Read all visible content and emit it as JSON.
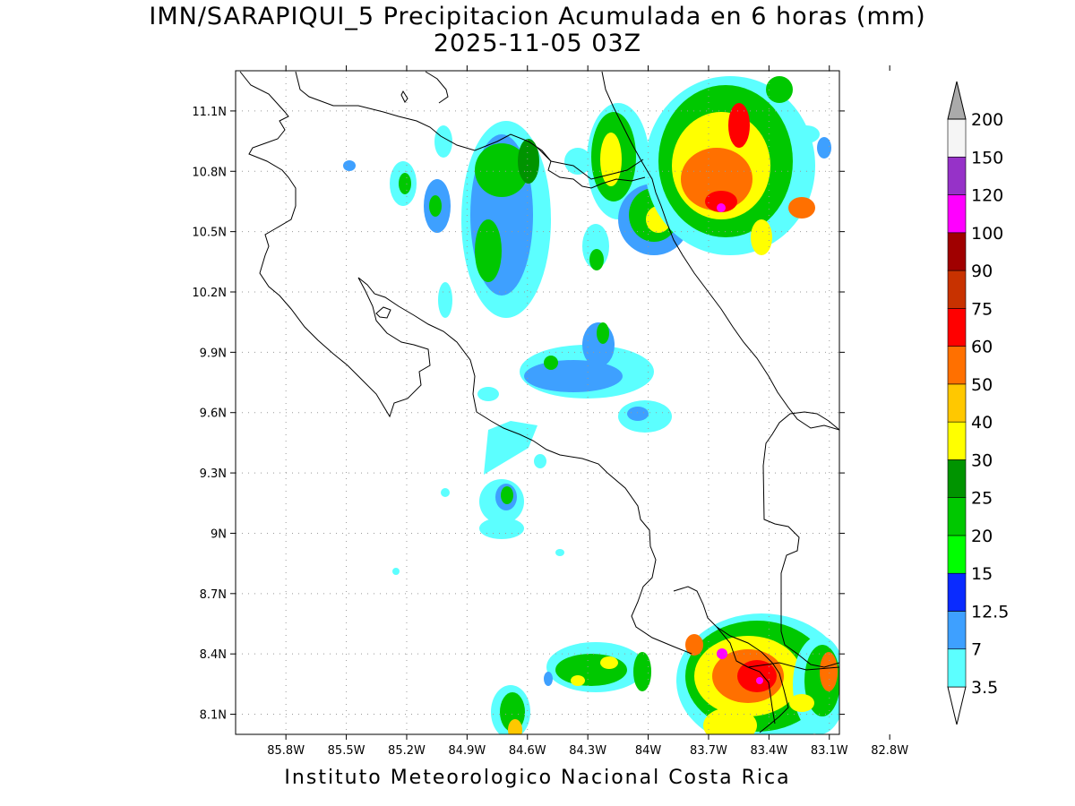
{
  "title_line1": "IMN/SARAPIQUI_5 Precipitacion Acumulada en 6 horas (mm)",
  "title_line2": "2025-11-05 03Z",
  "footer": "Instituto Meteorologico Nacional Costa Rica",
  "map": {
    "lon_range": [
      -86.05,
      -83.05
    ],
    "lat_range": [
      8.0,
      11.3
    ],
    "lon_ticks": [
      "85.8W",
      "85.5W",
      "85.2W",
      "84.9W",
      "84.6W",
      "84.3W",
      "84W",
      "83.7W",
      "83.4W",
      "83.1W",
      "82.8W"
    ],
    "lat_ticks": [
      "11.1N",
      "10.8N",
      "10.5N",
      "10.2N",
      "9.9N",
      "9.6N",
      "9.3N",
      "9N",
      "8.7N",
      "8.4N",
      "8.1N"
    ],
    "grid": true
  },
  "colorbar": {
    "labels": [
      "3.5",
      "7",
      "12.5",
      "15",
      "20",
      "25",
      "30",
      "40",
      "50",
      "60",
      "75",
      "90",
      "100",
      "120",
      "150",
      "200"
    ],
    "colors": [
      "#5cffff",
      "#3ea0ff",
      "#0a2bff",
      "#00ff00",
      "#00c800",
      "#009400",
      "#ffff00",
      "#ffc800",
      "#ff7000",
      "#ff0000",
      "#c83200",
      "#a00000",
      "#ff00ff",
      "#9632c8",
      "#f5f5f5",
      "#aaaaaa"
    ]
  }
}
